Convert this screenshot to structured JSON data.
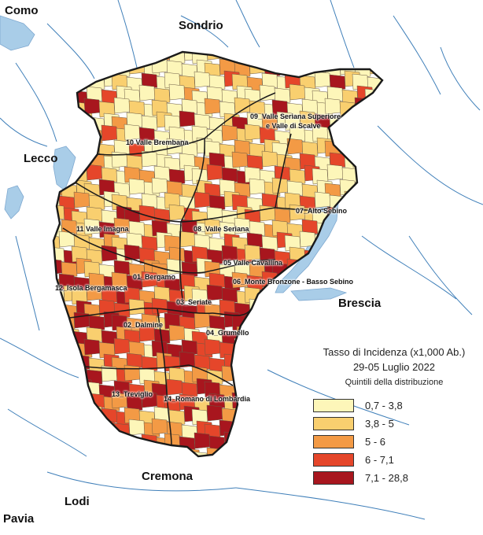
{
  "map": {
    "surrounding_places": [
      {
        "id": "como",
        "text": "Como"
      },
      {
        "id": "sondrio",
        "text": "Sondrio"
      },
      {
        "id": "lecco",
        "text": "Lecco"
      },
      {
        "id": "brescia",
        "text": "Brescia"
      },
      {
        "id": "cremona",
        "text": "Cremona"
      },
      {
        "id": "lodi",
        "text": "Lodi"
      },
      {
        "id": "pavia",
        "text": "Pavia"
      }
    ],
    "districts": [
      {
        "id": "01",
        "text": "01_Bergamo"
      },
      {
        "id": "02",
        "text": "02_Dalmine"
      },
      {
        "id": "03",
        "text": "03_Seriate"
      },
      {
        "id": "04",
        "text": "04_Grumello"
      },
      {
        "id": "05",
        "text": "05 Valle Cavallina"
      },
      {
        "id": "06",
        "text": "06_Monte Bronzone - Basso Sebino"
      },
      {
        "id": "07",
        "text": "07_Alto Sebino"
      },
      {
        "id": "08",
        "text": "08_Valle Seriana"
      },
      {
        "id": "09a",
        "text": "09_Valle Seriana Superiore"
      },
      {
        "id": "09b",
        "text": "e Valle di Scalve"
      },
      {
        "id": "10",
        "text": "10 Valle Brembana"
      },
      {
        "id": "11",
        "text": "11 Valle Imagna"
      },
      {
        "id": "12",
        "text": "12_Isola Bergamasca"
      },
      {
        "id": "13",
        "text": "13_Treviglio"
      },
      {
        "id": "14",
        "text": "14_Romano di Lombardia"
      }
    ]
  },
  "legend": {
    "title": "Tasso di Incidenza (x1,000 Ab.)",
    "period": "29-05 Luglio 2022",
    "subtitle": "Quintili della distribuzione",
    "classes": [
      {
        "label": "0,7 - 3,8",
        "color": "#fdf6b9"
      },
      {
        "label": "3,8 - 5",
        "color": "#f9cf6f"
      },
      {
        "label": "5 - 6",
        "color": "#f39a45"
      },
      {
        "label": "6 - 7,1",
        "color": "#e5462a"
      },
      {
        "label": "7,1 - 28,8",
        "color": "#a8161e"
      }
    ]
  },
  "colors": {
    "water": "#a9cde8",
    "river": "#3f7fb9",
    "boundary": "#1a1a1a"
  }
}
